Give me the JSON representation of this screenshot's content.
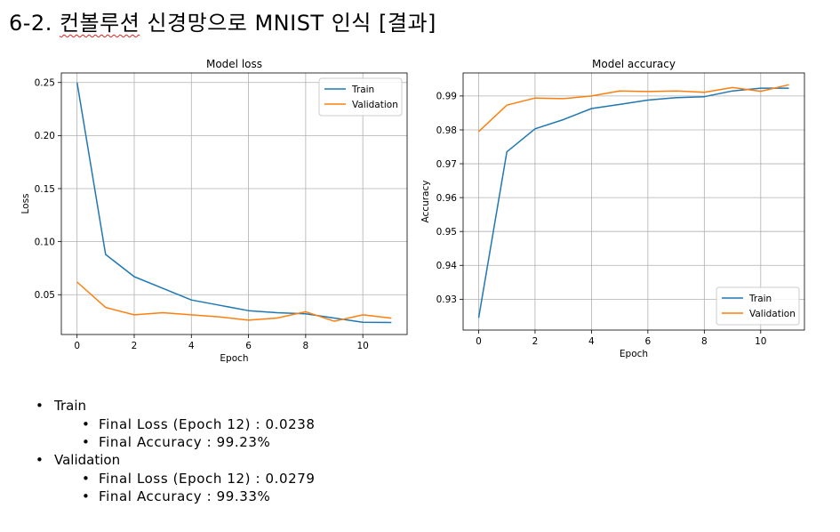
{
  "slide": {
    "title_prefix": "6-2. ",
    "title_squiggle": "컨볼루션",
    "title_rest": " 신경망으로 MNIST 인식 [결과]"
  },
  "bullets": {
    "train": {
      "label": "Train",
      "loss": "Final Loss (Epoch 12) : 0.0238",
      "accuracy": "Final Accuracy : 99.23%"
    },
    "validation": {
      "label": "Validation",
      "loss": "Final Loss (Epoch 12) : 0.0279",
      "accuracy": "Final Accuracy : 99.33%"
    }
  },
  "colors": {
    "train": "#1f77b4",
    "validation": "#ff7f0e",
    "grid": "#b0b0b0"
  },
  "chart_data": [
    {
      "type": "line",
      "title": "Model loss",
      "xlabel": "Epoch",
      "ylabel": "Loss",
      "x": [
        0,
        1,
        2,
        3,
        4,
        5,
        6,
        7,
        8,
        9,
        10,
        11
      ],
      "xlim": [
        -0.55,
        11.55
      ],
      "ylim": [
        0.0125,
        0.259
      ],
      "xticks": [
        "0",
        "2",
        "4",
        "6",
        "8",
        "10"
      ],
      "xtick_values": [
        0,
        2,
        4,
        6,
        8,
        10
      ],
      "yticks": [
        "0.05",
        "0.10",
        "0.15",
        "0.20",
        "0.25"
      ],
      "ytick_values": [
        0.05,
        0.1,
        0.15,
        0.2,
        0.25
      ],
      "grid": true,
      "legend": "top-right",
      "series": [
        {
          "name": "Train",
          "values": [
            0.25,
            0.088,
            0.067,
            0.056,
            0.045,
            0.04,
            0.035,
            0.033,
            0.032,
            0.028,
            0.024,
            0.0238
          ]
        },
        {
          "name": "Validation",
          "values": [
            0.062,
            0.038,
            0.031,
            0.033,
            0.031,
            0.029,
            0.026,
            0.028,
            0.034,
            0.025,
            0.031,
            0.0279
          ]
        }
      ]
    },
    {
      "type": "line",
      "title": "Model accuracy",
      "xlabel": "Epoch",
      "ylabel": "Accuracy",
      "x": [
        0,
        1,
        2,
        3,
        4,
        5,
        6,
        7,
        8,
        9,
        10,
        11
      ],
      "xlim": [
        -0.55,
        11.55
      ],
      "ylim": [
        0.9209,
        0.9968
      ],
      "xticks": [
        "0",
        "2",
        "4",
        "6",
        "8",
        "10"
      ],
      "xtick_values": [
        0,
        2,
        4,
        6,
        8,
        10
      ],
      "yticks": [
        "0.93",
        "0.94",
        "0.95",
        "0.96",
        "0.97",
        "0.98",
        "0.99"
      ],
      "ytick_values": [
        0.93,
        0.94,
        0.95,
        0.96,
        0.97,
        0.98,
        0.99
      ],
      "grid": true,
      "legend": "bottom-right",
      "series": [
        {
          "name": "Train",
          "values": [
            0.9245,
            0.9735,
            0.9803,
            0.983,
            0.9863,
            0.9875,
            0.9888,
            0.9895,
            0.9898,
            0.9915,
            0.9923,
            0.9923
          ]
        },
        {
          "name": "Validation",
          "values": [
            0.9795,
            0.9873,
            0.9894,
            0.9892,
            0.99,
            0.9915,
            0.9913,
            0.9915,
            0.9911,
            0.9925,
            0.9914,
            0.9933
          ]
        }
      ]
    }
  ]
}
